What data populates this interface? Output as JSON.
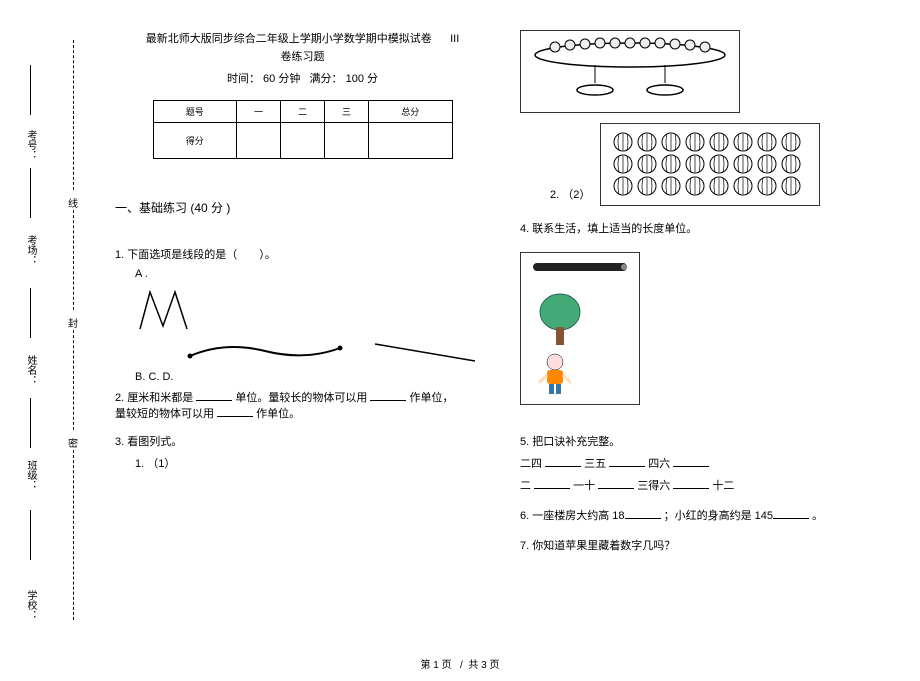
{
  "binding": {
    "labels": [
      "考号：",
      "考场：",
      "姓名：",
      "班级：",
      "学校："
    ],
    "chars": [
      "线",
      "封",
      "密"
    ]
  },
  "header": {
    "title_main": "最新北师大版同步综合二年级上学期小学数学期中模拟试卷",
    "title_num": "III",
    "subtitle": "卷练习题",
    "time": "时间： 60 分钟",
    "full": "满分：  100  分"
  },
  "score_table": {
    "r1": [
      "题号",
      "一",
      "二",
      "三",
      "总分"
    ],
    "r2": "得分"
  },
  "col1": {
    "section": "一、基础练习  (40 分 )",
    "q1": "1.   下面选项是线段的是（　　）。",
    "q1_a": "A .",
    "q1_bcd": "B.   C.   D.",
    "q2a": "2.   厘米和米都是 ",
    "q2b": "单位。量较长的物体可以用 ",
    "q2c": "作单位，",
    "q2d": "量较短的物体可以用 ",
    "q2e": "作单位。",
    "q3": "3.   看图列式。",
    "q3_1": "1.   （1）"
  },
  "col2": {
    "q3_2a": "2.   （2）",
    "q4": "4.   联系生活，填上适当的长度单位。",
    "q5": "5.   把口诀补充完整。",
    "q5_l1a": "二四 ",
    "q5_l1b": "   三五 ",
    "q5_l1c": "   四六 ",
    "q5_l2a": "二 ",
    "q5_l2b": "一十 ",
    "q5_l2c": "   三得六 ",
    "q5_l2d": "十二",
    "q6a": "6.   一座楼房大约高  18",
    "q6b": "；小红的身高约是  145",
    "q6c": "。",
    "q7": "7.   你知道苹果里藏着数字几吗？"
  },
  "footer": {
    "page": "第 1 页",
    "sep": "/",
    "total": "共 3 页"
  }
}
